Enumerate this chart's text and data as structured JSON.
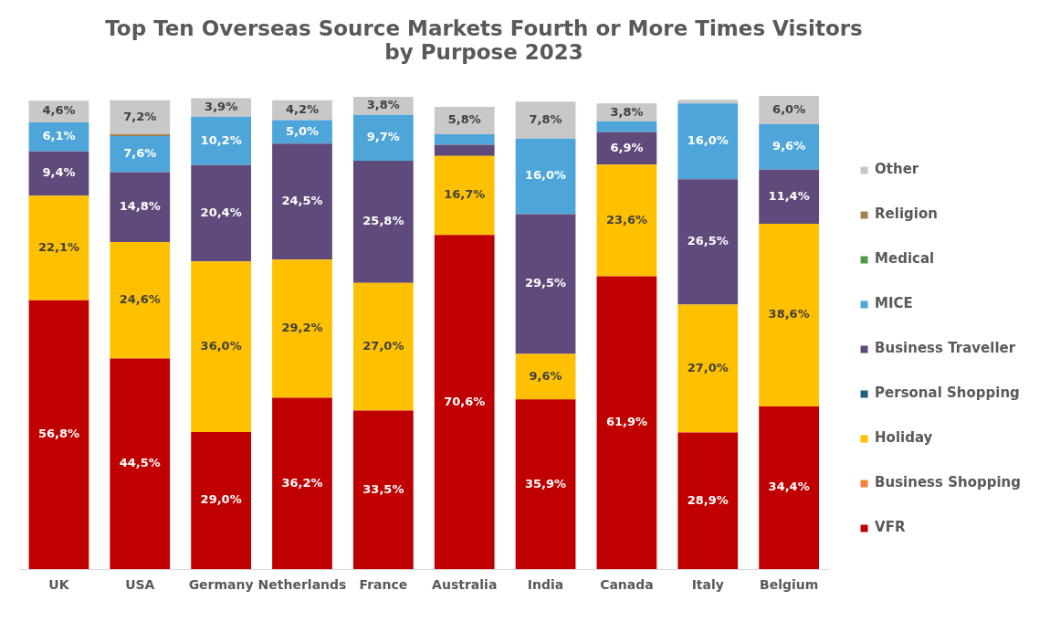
{
  "chart_data": {
    "type": "bar",
    "title": "Top Ten Overseas Source Markets Fourth or More Times Visitors by Purpose 2023",
    "stacked": true,
    "legend": "right",
    "grid": false,
    "categories": [
      "UK",
      "USA",
      "Germany",
      "Netherlands",
      "France",
      "Australia",
      "India",
      "Canada",
      "Italy",
      "Belgium"
    ],
    "series": [
      {
        "name": "VFR",
        "color": "#c00000",
        "values": [
          56.8,
          44.5,
          29.0,
          36.2,
          33.5,
          70.6,
          35.9,
          61.9,
          28.9,
          34.4
        ],
        "value_labels": [
          "56,8%",
          "44,5%",
          "29,0%",
          "36,2%",
          "33,5%",
          "70,6%",
          "35,9%",
          "61,9%",
          "28,9%",
          "34,4%"
        ]
      },
      {
        "name": "Business Shopping",
        "color": "#f5803e",
        "values": [
          null,
          null,
          null,
          null,
          null,
          null,
          null,
          null,
          null,
          null
        ]
      },
      {
        "name": "Holiday",
        "color": "#ffc000",
        "values": [
          22.1,
          24.6,
          36.0,
          29.2,
          27.0,
          16.7,
          9.6,
          23.6,
          27.0,
          38.6
        ],
        "value_labels": [
          "22,1%",
          "24,6%",
          "36,0%",
          "29,2%",
          "27,0%",
          "16,7%",
          "9,6%",
          "23,6%",
          "27,0%",
          "38,6%"
        ]
      },
      {
        "name": "Personal Shopping",
        "color": "#1f5f7f",
        "values": [
          null,
          null,
          null,
          null,
          null,
          null,
          null,
          null,
          null,
          null
        ]
      },
      {
        "name": "Business Traveller",
        "color": "#604a7b",
        "values": [
          9.4,
          14.8,
          20.4,
          24.5,
          25.8,
          2.4,
          29.5,
          6.9,
          26.5,
          11.4
        ],
        "value_labels": [
          "9,4%",
          "14,8%",
          "20,4%",
          "24,5%",
          "25,8%",
          null,
          "29,5%",
          "6,9%",
          "26,5%",
          "11,4%"
        ]
      },
      {
        "name": "MICE",
        "color": "#4ea5d9",
        "values": [
          6.1,
          7.6,
          10.2,
          5.0,
          9.7,
          2.2,
          16.0,
          2.2,
          16.0,
          9.6
        ],
        "value_labels": [
          "6,1%",
          "7,6%",
          "10,2%",
          "5,0%",
          "9,7%",
          null,
          "16,0%",
          null,
          "16,0%",
          "9,6%"
        ]
      },
      {
        "name": "Medical",
        "color": "#4e9a47",
        "values": [
          null,
          null,
          null,
          null,
          null,
          null,
          null,
          null,
          null,
          null
        ]
      },
      {
        "name": "Religion",
        "color": "#a5814e",
        "values": [
          null,
          0.4,
          null,
          null,
          null,
          null,
          null,
          null,
          null,
          null
        ]
      },
      {
        "name": "Other",
        "color": "#c8c8c8",
        "values": [
          4.6,
          7.2,
          3.9,
          4.2,
          3.8,
          5.8,
          7.8,
          3.8,
          0.8,
          6.0
        ],
        "value_labels": [
          "4,6%",
          "7,2%",
          "3,9%",
          "4,2%",
          "3,8%",
          "5,8%",
          "7,8%",
          "3,8%",
          null,
          "6,0%"
        ]
      }
    ]
  }
}
